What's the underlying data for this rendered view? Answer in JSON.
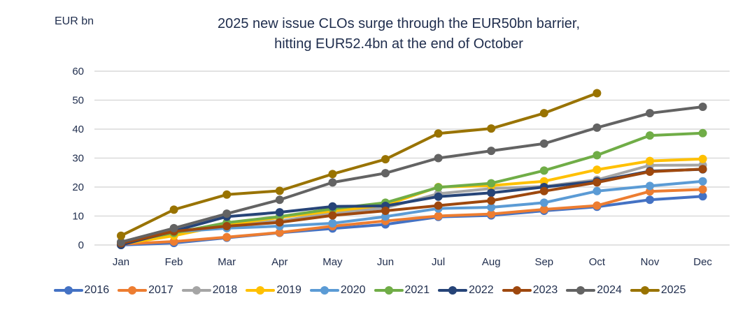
{
  "chart_data": {
    "type": "line",
    "title": "2025 new issue CLOs surge through the EUR50bn barrier,\nhitting EUR52.4bn at the end of October",
    "title_lines": [
      "2025 new issue CLOs surge through the EUR50bn barrier,",
      "hitting EUR52.4bn at the end of October"
    ],
    "ylabel": "EUR bn",
    "xlabel": "",
    "ylim": [
      0,
      60
    ],
    "yticks": [
      0,
      10,
      20,
      30,
      40,
      50,
      60
    ],
    "grid": true,
    "legend_position": "bottom",
    "categories": [
      "Jan",
      "Feb",
      "Mar",
      "Apr",
      "May",
      "Jun",
      "Jul",
      "Aug",
      "Sep",
      "Oct",
      "Nov",
      "Dec"
    ],
    "series": [
      {
        "name": "2016",
        "color": "#4472c4",
        "values": [
          0,
          0.7,
          2.5,
          4.2,
          5.7,
          7.1,
          9.7,
          10.2,
          11.8,
          13.2,
          15.6,
          16.8
        ]
      },
      {
        "name": "2017",
        "color": "#ed7d31",
        "values": [
          0.3,
          1.2,
          2.7,
          4.3,
          6.5,
          8.3,
          10.0,
          10.7,
          12.3,
          13.6,
          18.5,
          19.2
        ]
      },
      {
        "name": "2018",
        "color": "#a5a5a5",
        "values": [
          0.5,
          4.3,
          7.0,
          8.3,
          11.0,
          12.8,
          17.7,
          19.5,
          20.2,
          22.5,
          27.5,
          27.6
        ]
      },
      {
        "name": "2019",
        "color": "#ffc000",
        "values": [
          0.3,
          3.2,
          7.0,
          9.5,
          11.7,
          13.8,
          20.0,
          20.5,
          22.0,
          26.0,
          29.0,
          29.7
        ]
      },
      {
        "name": "2020",
        "color": "#5b9bd5",
        "values": [
          0.5,
          4.5,
          5.8,
          6.5,
          7.5,
          9.8,
          12.6,
          13.0,
          14.6,
          18.6,
          20.4,
          22.0
        ]
      },
      {
        "name": "2021",
        "color": "#70ad47",
        "values": [
          0.8,
          4.2,
          7.7,
          9.8,
          12.5,
          14.6,
          19.9,
          21.3,
          25.7,
          31.0,
          37.8,
          38.6
        ]
      },
      {
        "name": "2022",
        "color": "#264478",
        "values": [
          0,
          4.8,
          9.8,
          11.3,
          13.3,
          13.5,
          16.7,
          18.0,
          20.0,
          22.0,
          25.5,
          26.1
        ]
      },
      {
        "name": "2023",
        "color": "#9e480e",
        "values": [
          0.6,
          4.7,
          6.5,
          7.8,
          10.2,
          11.8,
          13.6,
          15.3,
          18.6,
          21.6,
          25.3,
          26.2
        ]
      },
      {
        "name": "2024",
        "color": "#636363",
        "values": [
          1.0,
          5.8,
          10.8,
          15.6,
          21.6,
          24.8,
          30.0,
          32.5,
          35.0,
          40.5,
          45.5,
          47.7
        ]
      },
      {
        "name": "2025",
        "color": "#997300",
        "values": [
          3.2,
          12.2,
          17.4,
          18.7,
          24.5,
          29.6,
          38.5,
          40.2,
          45.5,
          52.4,
          null,
          null
        ]
      }
    ]
  }
}
